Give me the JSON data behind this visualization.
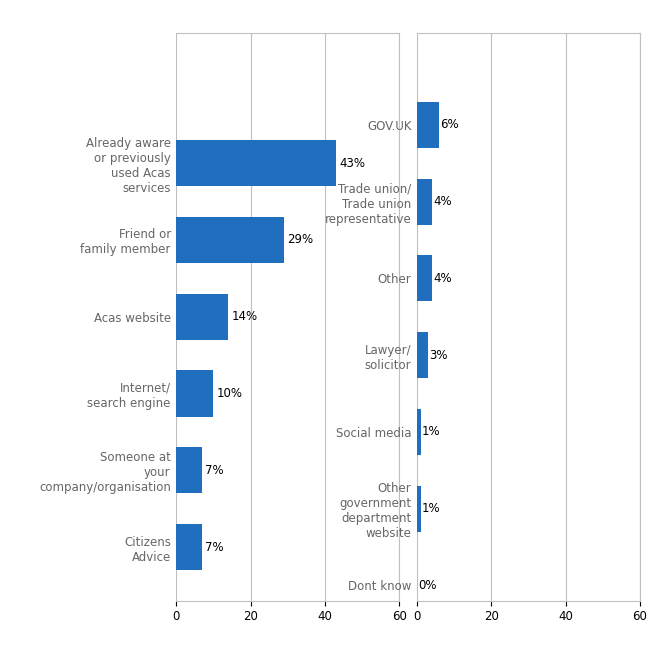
{
  "left_labels": [
    "Already aware\nor previously\nused Acas\nservices",
    "Friend or\nfamily member",
    "Acas website",
    "Internet/\nsearch engine",
    "Someone at\nyour\ncompany/organisation",
    "Citizens\nAdvice"
  ],
  "left_values": [
    43,
    29,
    14,
    10,
    7,
    7
  ],
  "left_pct": [
    "43%",
    "29%",
    "14%",
    "10%",
    "7%",
    "7%"
  ],
  "right_labels": [
    "GOV.UK",
    "Trade union/\nTrade union\nrepresentative",
    "Other",
    "Lawyer/\nsolicitor",
    "Social media",
    "Other\ngovernment\ndepartment\nwebsite",
    "Dont know"
  ],
  "right_values": [
    6,
    4,
    4,
    3,
    1,
    1,
    0
  ],
  "right_pct": [
    "6%",
    "4%",
    "4%",
    "3%",
    "1%",
    "1%",
    "0%"
  ],
  "bar_color": "#1F6FBE",
  "xlim": [
    0,
    60
  ],
  "grid_color": "#C0C0C0",
  "background_color": "#FFFFFF",
  "label_fontsize": 8.5,
  "pct_fontsize": 8.5,
  "tick_fontsize": 8.5,
  "label_color": "#666666"
}
